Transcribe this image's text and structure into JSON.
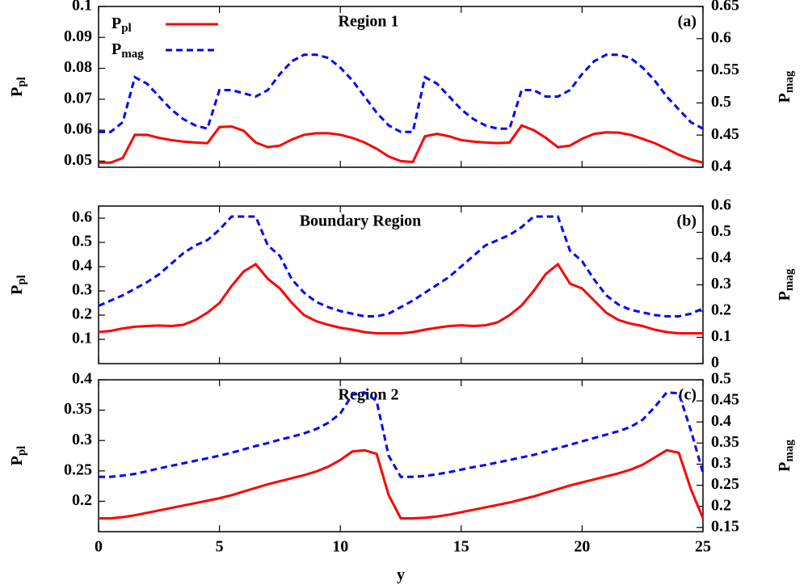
{
  "chart_data": [
    {
      "type": "line",
      "title": "Region 1",
      "label": "(a)",
      "ylabel": [
        "P",
        "pl"
      ],
      "y2label": [
        "P",
        "mag"
      ],
      "xlim": [
        0,
        25
      ],
      "ylim": [
        0.048,
        0.1
      ],
      "y2lim": [
        0.4,
        0.65
      ],
      "yticks": [
        0.05,
        0.06,
        0.07,
        0.08,
        0.09,
        0.1
      ],
      "y2ticks": [
        0.4,
        0.45,
        0.5,
        0.55,
        0.6,
        0.65
      ],
      "x": [
        0,
        0.5,
        1,
        1.5,
        2,
        2.5,
        3,
        3.5,
        4,
        4.5,
        5,
        5.5,
        6,
        6.5,
        7,
        7.5,
        8,
        8.5,
        9,
        9.5,
        10,
        10.5,
        11,
        11.5,
        12,
        12.5,
        13,
        13.5,
        14,
        14.5,
        15,
        15.5,
        16,
        16.5,
        17,
        17.5,
        18,
        18.5,
        19,
        19.5,
        20,
        20.5,
        21,
        21.5,
        22,
        22.5,
        23,
        23.5,
        24,
        24.5,
        25
      ],
      "series": [
        {
          "name": [
            "P",
            "pl"
          ],
          "color": "#ff0000",
          "dash": false,
          "values": [
            0.0495,
            0.0495,
            0.051,
            0.0585,
            0.0585,
            0.0575,
            0.0568,
            0.0563,
            0.056,
            0.0558,
            0.061,
            0.0612,
            0.0598,
            0.056,
            0.0545,
            0.055,
            0.057,
            0.0585,
            0.059,
            0.059,
            0.0585,
            0.0575,
            0.056,
            0.054,
            0.0515,
            0.05,
            0.0497,
            0.058,
            0.0588,
            0.058,
            0.0568,
            0.0563,
            0.056,
            0.0558,
            0.056,
            0.0615,
            0.06,
            0.0575,
            0.0545,
            0.055,
            0.0572,
            0.0588,
            0.0593,
            0.0592,
            0.0585,
            0.0572,
            0.0558,
            0.054,
            0.052,
            0.0505,
            0.0495
          ]
        },
        {
          "name": [
            "P",
            "mag"
          ],
          "color": "#0000ff",
          "dash": true,
          "axis": "y2",
          "values": [
            0.455,
            0.455,
            0.47,
            0.54,
            0.53,
            0.51,
            0.49,
            0.475,
            0.465,
            0.46,
            0.52,
            0.52,
            0.515,
            0.51,
            0.52,
            0.545,
            0.565,
            0.575,
            0.575,
            0.57,
            0.555,
            0.535,
            0.51,
            0.485,
            0.465,
            0.455,
            0.455,
            0.54,
            0.53,
            0.51,
            0.49,
            0.475,
            0.465,
            0.46,
            0.46,
            0.52,
            0.52,
            0.51,
            0.51,
            0.52,
            0.545,
            0.565,
            0.575,
            0.575,
            0.57,
            0.555,
            0.535,
            0.51,
            0.49,
            0.47,
            0.46
          ]
        }
      ]
    },
    {
      "type": "line",
      "title": "Boundary Region",
      "label": "(b)",
      "ylabel": [
        "P",
        "pl"
      ],
      "y2label": [
        "P",
        "mag"
      ],
      "xlim": [
        0,
        25
      ],
      "ylim": [
        0,
        0.65
      ],
      "y2lim": [
        0,
        0.6
      ],
      "yticks": [
        0.1,
        0.2,
        0.3,
        0.4,
        0.5,
        0.6
      ],
      "y2ticks": [
        0,
        0.1,
        0.2,
        0.3,
        0.4,
        0.5,
        0.6
      ],
      "x": [
        0,
        0.5,
        1,
        1.5,
        2,
        2.5,
        3,
        3.5,
        4,
        4.5,
        5,
        5.5,
        6,
        6.5,
        7,
        7.5,
        8,
        8.5,
        9,
        9.5,
        10,
        10.5,
        11,
        11.5,
        12,
        12.5,
        13,
        13.5,
        14,
        14.5,
        15,
        15.5,
        16,
        16.5,
        17,
        17.5,
        18,
        18.5,
        19,
        19.5,
        20,
        20.5,
        21,
        21.5,
        22,
        22.5,
        23,
        23.5,
        24,
        24.5,
        25
      ],
      "series": [
        {
          "color": "#ff0000",
          "dash": false,
          "values": [
            0.13,
            0.135,
            0.145,
            0.152,
            0.155,
            0.157,
            0.155,
            0.16,
            0.18,
            0.21,
            0.25,
            0.32,
            0.38,
            0.41,
            0.35,
            0.31,
            0.25,
            0.2,
            0.175,
            0.16,
            0.148,
            0.14,
            0.13,
            0.125,
            0.125,
            0.125,
            0.13,
            0.14,
            0.148,
            0.155,
            0.158,
            0.155,
            0.158,
            0.17,
            0.2,
            0.24,
            0.3,
            0.37,
            0.41,
            0.33,
            0.31,
            0.26,
            0.21,
            0.18,
            0.165,
            0.155,
            0.14,
            0.13,
            0.125,
            0.125,
            0.125
          ]
        },
        {
          "color": "#0000ff",
          "dash": true,
          "axis": "y2",
          "values": [
            0.22,
            0.24,
            0.26,
            0.285,
            0.31,
            0.34,
            0.38,
            0.42,
            0.45,
            0.47,
            0.51,
            0.56,
            0.56,
            0.56,
            0.45,
            0.41,
            0.32,
            0.27,
            0.235,
            0.215,
            0.2,
            0.19,
            0.18,
            0.18,
            0.19,
            0.215,
            0.24,
            0.27,
            0.3,
            0.33,
            0.37,
            0.41,
            0.45,
            0.47,
            0.49,
            0.52,
            0.56,
            0.56,
            0.56,
            0.43,
            0.39,
            0.32,
            0.26,
            0.225,
            0.205,
            0.195,
            0.185,
            0.18,
            0.18,
            0.19,
            0.21
          ]
        }
      ]
    },
    {
      "type": "line",
      "title": "Region 2",
      "label": "(c)",
      "ylabel": [
        "P",
        "pl"
      ],
      "y2label": [
        "P",
        "mag"
      ],
      "xlabel": "y",
      "xlim": [
        0,
        25
      ],
      "ylim": [
        0.15,
        0.4
      ],
      "y2lim": [
        0.14,
        0.5
      ],
      "xticks": [
        0,
        5,
        10,
        15,
        20,
        25
      ],
      "yticks": [
        0.2,
        0.25,
        0.3,
        0.35,
        0.4
      ],
      "y2ticks": [
        0.15,
        0.2,
        0.25,
        0.3,
        0.35,
        0.4,
        0.45,
        0.5
      ],
      "x": [
        0,
        0.5,
        1,
        1.5,
        2,
        2.5,
        3,
        3.5,
        4,
        4.5,
        5,
        5.5,
        6,
        6.5,
        7,
        7.5,
        8,
        8.5,
        9,
        9.5,
        10,
        10.5,
        11,
        11.5,
        12,
        12.5,
        13,
        13.5,
        14,
        14.5,
        15,
        15.5,
        16,
        16.5,
        17,
        17.5,
        18,
        18.5,
        19,
        19.5,
        20,
        20.5,
        21,
        21.5,
        22,
        22.5,
        23,
        23.5,
        24,
        24.5,
        25
      ],
      "series": [
        {
          "color": "#ff0000",
          "dash": false,
          "values": [
            0.172,
            0.172,
            0.174,
            0.177,
            0.181,
            0.185,
            0.189,
            0.193,
            0.197,
            0.201,
            0.205,
            0.21,
            0.216,
            0.222,
            0.228,
            0.233,
            0.238,
            0.243,
            0.249,
            0.257,
            0.268,
            0.282,
            0.284,
            0.278,
            0.21,
            0.172,
            0.172,
            0.173,
            0.175,
            0.178,
            0.182,
            0.186,
            0.19,
            0.194,
            0.198,
            0.203,
            0.208,
            0.214,
            0.22,
            0.226,
            0.231,
            0.236,
            0.241,
            0.246,
            0.252,
            0.26,
            0.272,
            0.284,
            0.28,
            0.22,
            0.172
          ]
        },
        {
          "color": "#0000ff",
          "dash": true,
          "axis": "y2",
          "values": [
            0.27,
            0.27,
            0.273,
            0.277,
            0.283,
            0.29,
            0.296,
            0.302,
            0.308,
            0.314,
            0.32,
            0.327,
            0.335,
            0.343,
            0.35,
            0.358,
            0.365,
            0.373,
            0.383,
            0.398,
            0.42,
            0.465,
            0.47,
            0.45,
            0.32,
            0.27,
            0.27,
            0.272,
            0.276,
            0.281,
            0.287,
            0.293,
            0.298,
            0.304,
            0.31,
            0.316,
            0.322,
            0.33,
            0.338,
            0.346,
            0.354,
            0.362,
            0.37,
            0.378,
            0.388,
            0.405,
            0.435,
            0.47,
            0.468,
            0.38,
            0.28
          ]
        }
      ]
    }
  ]
}
